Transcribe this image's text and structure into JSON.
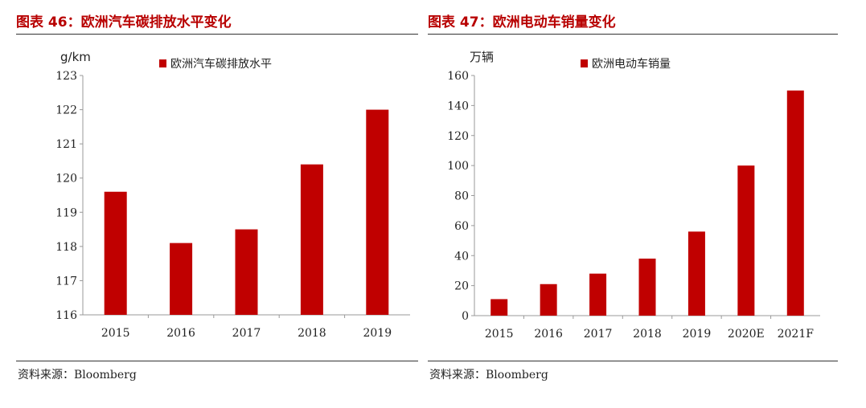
{
  "colors": {
    "bar": "#c00000",
    "title": "#b80000",
    "axis": "#999999"
  },
  "charts": [
    {
      "title": "图表 46：欧洲汽车碳排放水平变化",
      "source": "资料来源：Bloomberg",
      "unit": "g/km",
      "legend": "欧洲汽车碳排放水平"
    },
    {
      "title": "图表 47：欧洲电动车销量变化",
      "source": "资料来源：Bloomberg",
      "unit": "万辆",
      "legend": "欧洲电动车销量"
    }
  ],
  "chart_data": [
    {
      "type": "bar",
      "title": "图表 46：欧洲汽车碳排放水平变化",
      "ylabel": "g/km",
      "categories": [
        "2015",
        "2016",
        "2017",
        "2018",
        "2019"
      ],
      "series": [
        {
          "name": "欧洲汽车碳排放水平",
          "values": [
            119.6,
            118.1,
            118.5,
            120.4,
            122.0
          ]
        }
      ],
      "ylim": [
        116,
        123
      ],
      "yticks": [
        "116",
        "117",
        "118",
        "119",
        "120",
        "121",
        "122",
        "123"
      ],
      "legend_position": "top",
      "grid": false
    },
    {
      "type": "bar",
      "title": "图表 47：欧洲电动车销量变化",
      "ylabel": "万辆",
      "categories": [
        "2015",
        "2016",
        "2017",
        "2018",
        "2019",
        "2020E",
        "2021F"
      ],
      "series": [
        {
          "name": "欧洲电动车销量",
          "values": [
            11,
            21,
            28,
            38,
            56,
            100,
            150
          ]
        }
      ],
      "ylim": [
        0,
        160
      ],
      "yticks": [
        "0",
        "20",
        "40",
        "60",
        "80",
        "100",
        "120",
        "140",
        "160"
      ],
      "legend_position": "top",
      "grid": false
    }
  ]
}
